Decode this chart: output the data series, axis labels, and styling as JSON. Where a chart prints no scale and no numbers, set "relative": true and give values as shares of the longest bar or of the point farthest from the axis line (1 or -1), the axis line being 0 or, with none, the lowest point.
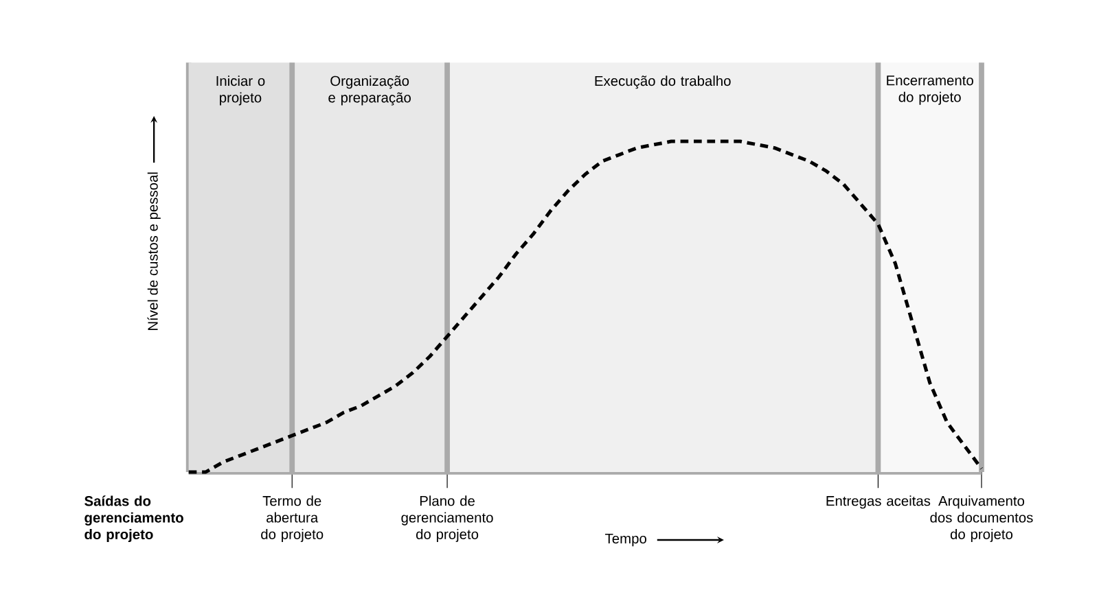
{
  "chart_data": {
    "type": "line",
    "relative": true,
    "xlabel": "Tempo",
    "ylabel": "Nível de custos e pessoal",
    "tick_labels": "x",
    "marker": "none",
    "line_style": "dashed",
    "categories": [
      null,
      null,
      null,
      null,
      null,
      null,
      "Termo de abertura do projeto",
      null,
      null,
      null,
      null,
      null,
      null,
      null,
      null,
      "Plano de gerenciamento do projeto",
      null,
      null,
      null,
      null,
      null,
      null,
      null,
      null,
      null,
      null,
      null,
      null,
      null,
      null,
      null,
      null,
      null,
      null,
      null,
      null,
      null,
      null,
      null,
      null,
      "Entregas aceitas",
      null,
      null,
      null,
      null,
      null,
      "Arquivamento dos documentos do projeto"
    ],
    "series": [
      {
        "color": "#000000",
        "values": [
          0.0,
          0.0,
          0.03,
          0.05,
          0.07,
          0.09,
          0.11,
          0.13,
          0.15,
          0.18,
          0.2,
          0.23,
          0.26,
          0.3,
          0.35,
          0.41,
          0.47,
          0.53,
          0.59,
          0.66,
          0.72,
          0.79,
          0.85,
          0.9,
          0.94,
          0.96,
          0.98,
          0.99,
          1.0,
          1.0,
          1.0,
          1.0,
          1.0,
          0.99,
          0.98,
          0.96,
          0.94,
          0.91,
          0.87,
          0.81,
          0.75,
          0.63,
          0.45,
          0.27,
          0.15,
          0.08,
          0.01
        ]
      }
    ],
    "bands": [
      {
        "axis": "x",
        "from": "Termo de abertura do projeto",
        "to": "Plano de gerenciamento do projeto",
        "label": "Organização e preparação",
        "color": "#e8e8e8"
      },
      {
        "axis": "x",
        "from": "Plano de gerenciamento do projeto",
        "to": "Entregas aceitas",
        "label": "Execução do trabalho",
        "color": "#f0f0f0"
      },
      {
        "axis": "x",
        "from": "Entregas aceitas",
        "to": "Arquivamento dos documentos do projeto",
        "label": "Encerramento do projeto",
        "color": "#f8f8f8"
      }
    ],
    "ref_lines": [
      {
        "axis": "x",
        "value": "Termo de abertura do projeto",
        "color": "#aaaaaa"
      },
      {
        "axis": "x",
        "value": "Plano de gerenciamento do projeto",
        "color": "#aaaaaa"
      },
      {
        "axis": "x",
        "value": "Entregas aceitas",
        "color": "#aaaaaa"
      }
    ],
    "annotations": [
      "**Saídas do gerenciamento do projeto**",
      "Iniciar o projeto"
    ]
  }
}
